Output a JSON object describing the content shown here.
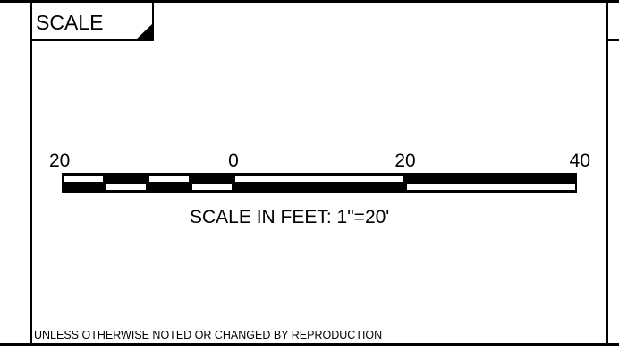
{
  "sheet": {
    "section_title": "SCALE",
    "scale_caption": "SCALE IN FEET: 1\"=20'",
    "footer_note": "UNLESS OTHERWISE NOTED OR CHANGED BY REPRODUCTION",
    "ink_color": "#000000",
    "paper_color": "#ffffff"
  },
  "scale_bar": {
    "unit": "feet",
    "tick_labels": [
      "20",
      "0",
      "20",
      "40"
    ],
    "tick_values": [
      -20,
      0,
      20,
      40
    ],
    "range": [
      -20,
      40
    ],
    "subdivision_step": 5,
    "main_step": 20
  }
}
